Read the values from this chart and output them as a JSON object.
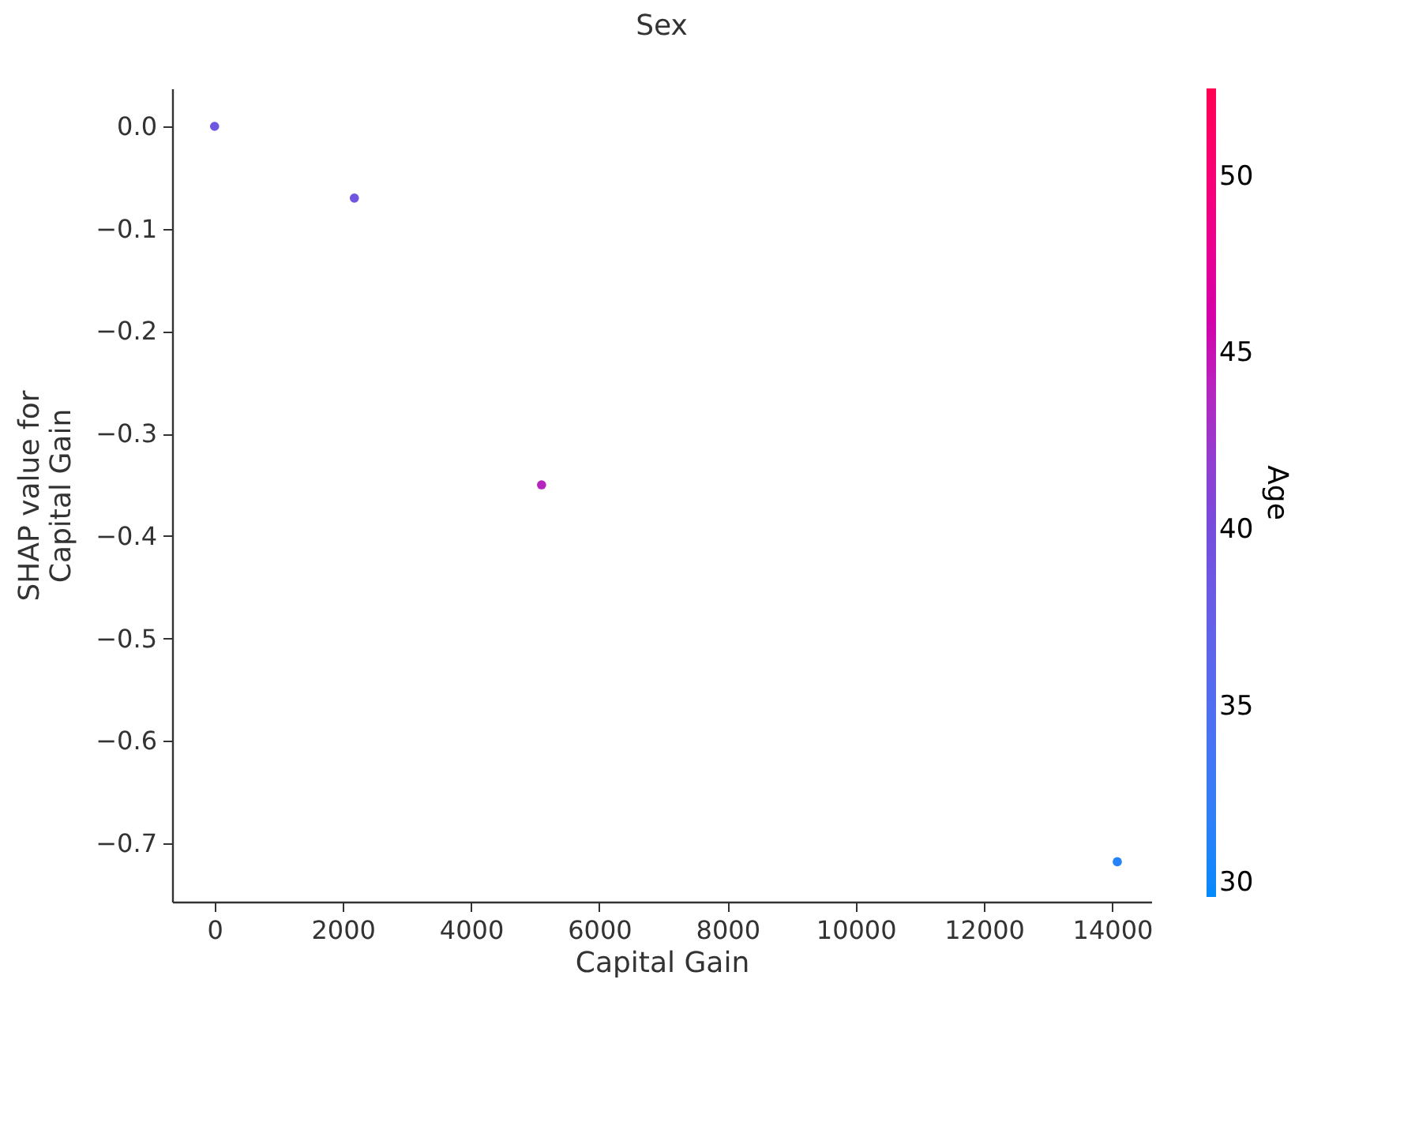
{
  "chart_data": {
    "type": "scatter",
    "title": "Sex",
    "xlabel": "Capital Gain",
    "ylabel": "SHAP value for\nCapital Gain",
    "clabel": "Age",
    "x": [
      0,
      2180,
      5100,
      14080
    ],
    "values": [
      0,
      -0.07,
      -0.35,
      -0.718
    ],
    "cvalues": [
      39,
      39,
      44,
      31
    ],
    "clim": [
      29.6,
      52.5
    ],
    "cticks": [
      30,
      35,
      40,
      45,
      50
    ],
    "xlim": [
      -662,
      14610
    ],
    "xticks": [
      0,
      2000,
      4000,
      6000,
      8000,
      10000,
      12000,
      14000
    ],
    "ylim": [
      -0.757,
      0.037
    ],
    "yticks": [
      {
        "value": 0,
        "label": "0.0"
      },
      {
        "value": -0.1,
        "label": "−0.1"
      },
      {
        "value": -0.2,
        "label": "−0.2"
      },
      {
        "value": -0.3,
        "label": "−0.3"
      },
      {
        "value": -0.4,
        "label": "−0.4"
      },
      {
        "value": -0.5,
        "label": "−0.5"
      },
      {
        "value": -0.6,
        "label": "−0.6"
      },
      {
        "value": -0.7,
        "label": "−0.7"
      }
    ],
    "grid": false
  }
}
